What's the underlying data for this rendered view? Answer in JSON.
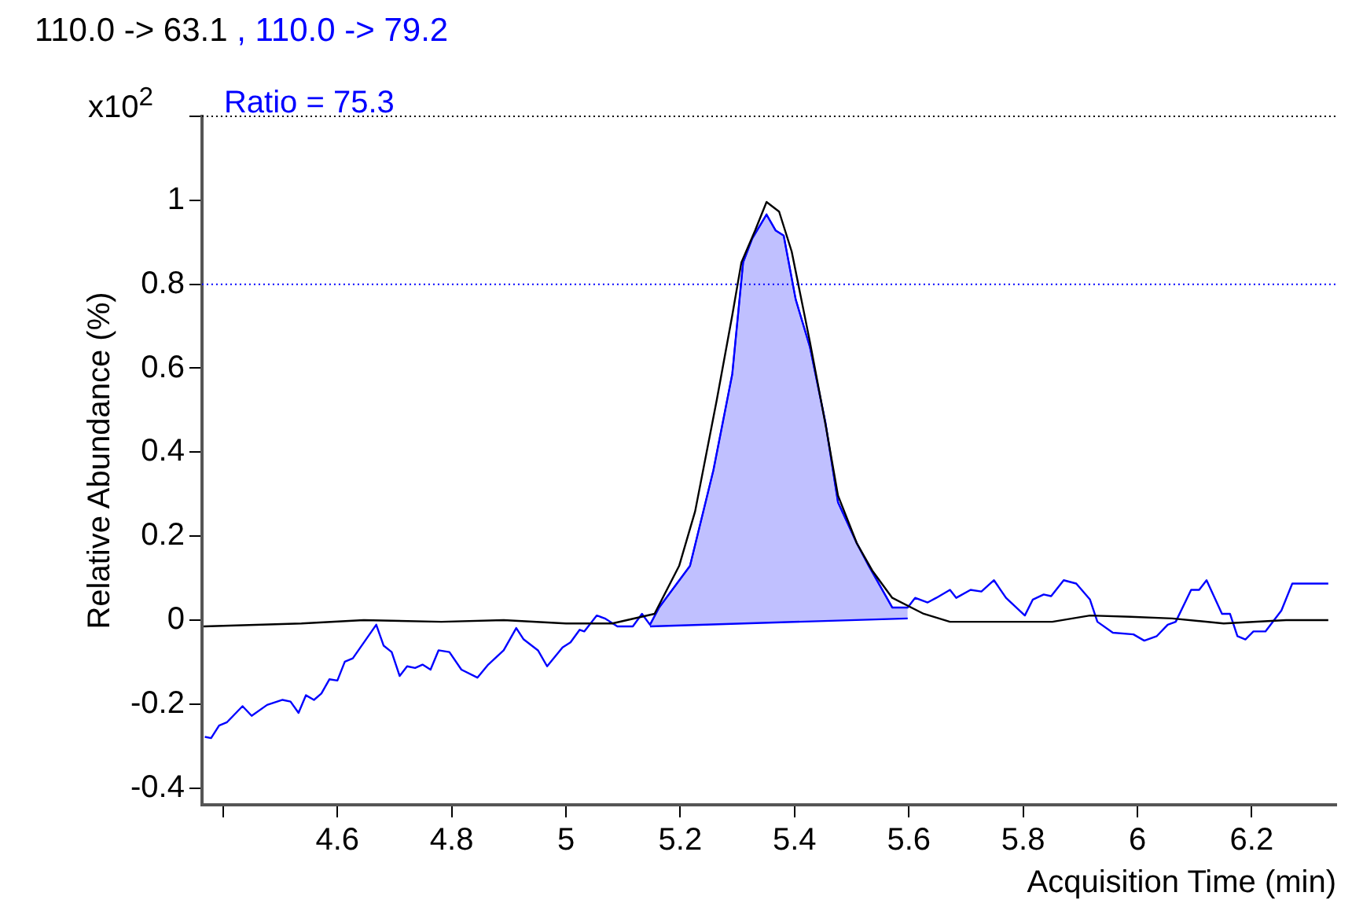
{
  "chart_data": {
    "type": "line",
    "xlabel": "Acquisition Time (min)",
    "ylabel": "Relative Abundance (%)",
    "annotations": [
      "x10$^{2}$",
      "Ratio = 75.3"
    ],
    "xlim": [
      4.363,
      6.348
    ],
    "xticks": [
      {
        "value": 4.4,
        "label": null
      },
      4.6,
      4.8,
      5,
      5.2,
      5.4,
      5.6,
      5.8,
      6,
      6.2
    ],
    "ylim": [
      -0.44,
      1.2
    ],
    "yticks": [
      -0.4,
      -0.2,
      0,
      0.2,
      0.4,
      0.6,
      0.8,
      1,
      {
        "value": 1.2,
        "label": null
      }
    ],
    "grid": false,
    "legend": "top left",
    "marker": "none",
    "line_style": "solid",
    "ref_lines": [
      {
        "axis": "y",
        "value": 1.2,
        "color": "#000000",
        "line_style": "dotted"
      },
      {
        "axis": "y",
        "value": 0.8,
        "color": "#0000ff",
        "line_style": "dotted"
      }
    ],
    "series": [
      {
        "name": "110.0 -> 63.1",
        "color": "#000000",
        "x": [
          4.366,
          4.537,
          4.646,
          4.782,
          4.891,
          5.0,
          5.081,
          5.155,
          5.198,
          5.226,
          5.264,
          5.291,
          5.307,
          5.331,
          5.351,
          5.373,
          5.395,
          5.427,
          5.455,
          5.476,
          5.509,
          5.536,
          5.571,
          5.626,
          5.672,
          5.762,
          5.851,
          5.917,
          5.988,
          6.061,
          6.151,
          6.26,
          6.334
        ],
        "values": [
          -0.015,
          -0.008,
          0,
          -0.004,
          0,
          -0.008,
          -0.008,
          0.015,
          0.129,
          0.259,
          0.525,
          0.726,
          0.852,
          0.928,
          0.996,
          0.973,
          0.878,
          0.662,
          0.46,
          0.297,
          0.183,
          0.118,
          0.053,
          0.015,
          -0.004,
          -0.004,
          -0.004,
          0.011,
          0.008,
          0.004,
          -0.008,
          0,
          0
        ]
      },
      {
        "name": ", 110.0 -> 79.2",
        "color": "#0000ff",
        "x": [
          4.368,
          4.379,
          4.393,
          4.407,
          4.434,
          4.45,
          4.477,
          4.504,
          4.518,
          4.532,
          4.545,
          4.559,
          4.572,
          4.586,
          4.6,
          4.613,
          4.627,
          4.668,
          4.681,
          4.695,
          4.709,
          4.722,
          4.736,
          4.749,
          4.763,
          4.777,
          4.796,
          4.817,
          4.845,
          4.864,
          4.891,
          4.913,
          4.926,
          4.951,
          4.967,
          4.994,
          5.008,
          5.024,
          5.032,
          5.054,
          5.068,
          5.09,
          5.117,
          5.133,
          5.147,
          5.163,
          5.217,
          5.258,
          5.291,
          5.31,
          5.326,
          5.351,
          5.367,
          5.381,
          5.402,
          5.427,
          5.454,
          5.476,
          5.509,
          5.53,
          5.571,
          5.598,
          5.611,
          5.633,
          5.648,
          5.672,
          5.683,
          5.708,
          5.727,
          5.749,
          5.77,
          5.803,
          5.817,
          5.836,
          5.849,
          5.871,
          5.893,
          5.917,
          5.93,
          5.957,
          5.993,
          6.012,
          6.034,
          6.053,
          6.067,
          6.094,
          6.108,
          6.121,
          6.148,
          6.162,
          6.175,
          6.189,
          6.203,
          6.224,
          6.252,
          6.271,
          6.298,
          6.334
        ],
        "values": [
          -0.278,
          -0.281,
          -0.251,
          -0.243,
          -0.205,
          -0.228,
          -0.202,
          -0.19,
          -0.194,
          -0.221,
          -0.179,
          -0.19,
          -0.175,
          -0.141,
          -0.144,
          -0.099,
          -0.091,
          -0.011,
          -0.061,
          -0.076,
          -0.133,
          -0.11,
          -0.114,
          -0.106,
          -0.118,
          -0.072,
          -0.076,
          -0.118,
          -0.137,
          -0.106,
          -0.072,
          -0.019,
          -0.046,
          -0.072,
          -0.11,
          -0.065,
          -0.053,
          -0.023,
          -0.027,
          0.011,
          0.004,
          -0.015,
          -0.015,
          0.015,
          -0.011,
          0.03,
          0.129,
          0.357,
          0.586,
          0.852,
          0.909,
          0.966,
          0.928,
          0.916,
          0.764,
          0.65,
          0.471,
          0.281,
          0.183,
          0.129,
          0.03,
          0.03,
          0.053,
          0.042,
          0.053,
          0.072,
          0.053,
          0.072,
          0.068,
          0.095,
          0.053,
          0.011,
          0.049,
          0.061,
          0.057,
          0.095,
          0.087,
          0.049,
          -0.004,
          -0.03,
          -0.034,
          -0.049,
          -0.038,
          -0.011,
          -0.004,
          0.072,
          0.072,
          0.095,
          0.015,
          0.015,
          -0.038,
          -0.046,
          -0.027,
          -0.027,
          0.023,
          0.087,
          0.087,
          0.087
        ]
      },
      {
        "type": "line",
        "color": "#0000ff",
        "x": [
          5.147,
          5.598
        ],
        "values": [
          -0.015,
          0.004
        ]
      },
      {
        "type": "area",
        "color": "#c0c0ff",
        "x": [
          5.147,
          5.163,
          5.217,
          5.258,
          5.291,
          5.31,
          5.326,
          5.351,
          5.367,
          5.381,
          5.402,
          5.427,
          5.454,
          5.476,
          5.509,
          5.53,
          5.571,
          5.598
        ],
        "values": [
          -0.011,
          0.03,
          0.129,
          0.357,
          0.586,
          0.852,
          0.909,
          0.966,
          0.928,
          0.916,
          0.764,
          0.65,
          0.471,
          0.281,
          0.183,
          0.129,
          0.03,
          0.03
        ]
      }
    ]
  }
}
